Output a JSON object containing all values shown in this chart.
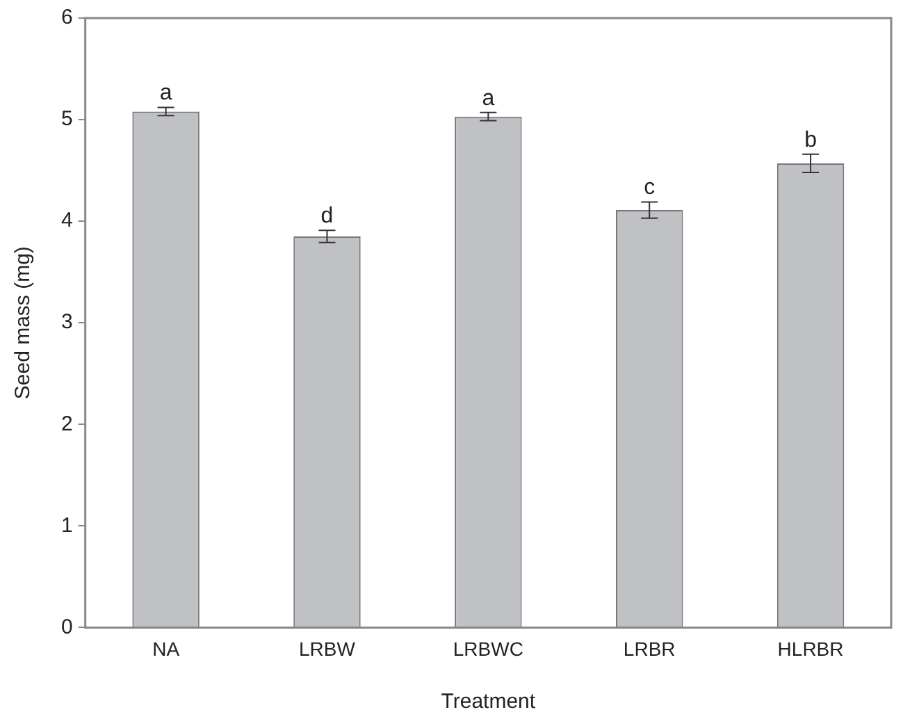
{
  "chart_data": {
    "type": "bar",
    "xlabel": "Treatment",
    "ylabel": "Seed mass (mg)",
    "categories": [
      "NA",
      "LRBW",
      "LRBWC",
      "LRBR",
      "HLRBR"
    ],
    "values": [
      5.08,
      3.85,
      5.03,
      4.11,
      4.57
    ],
    "errors": [
      0.04,
      0.06,
      0.04,
      0.08,
      0.09
    ],
    "color": "#c0c1c5",
    "ylim": [
      0,
      6
    ],
    "yticks": [
      0,
      1,
      2,
      3,
      4,
      5,
      6
    ],
    "grid": false,
    "legend": false,
    "annotations": [
      {
        "text": "a",
        "x": "NA",
        "y": 5.12
      },
      {
        "text": "d",
        "x": "LRBW",
        "y": 3.91
      },
      {
        "text": "a",
        "x": "LRBWC",
        "y": 5.07
      },
      {
        "text": "c",
        "x": "LRBR",
        "y": 4.19
      },
      {
        "text": "b",
        "x": "HLRBR",
        "y": 4.66
      }
    ]
  }
}
